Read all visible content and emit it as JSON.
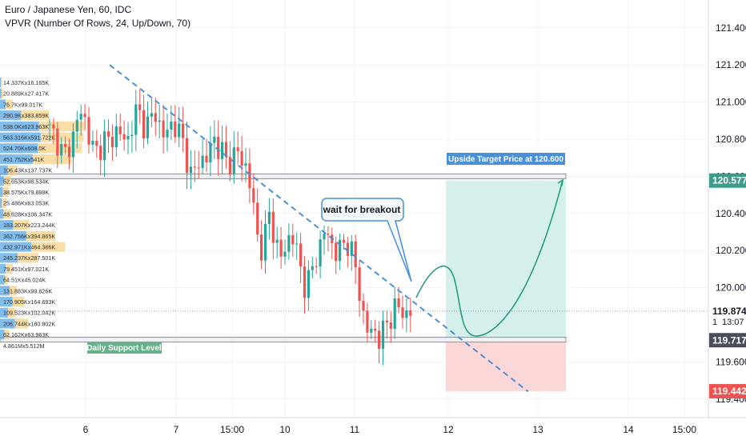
{
  "header": {
    "title": "Euro / Japanese Yen, 60, IDC",
    "indicator": "VPVR (Number Of Rows, 24, Up/Down, 70)"
  },
  "colors": {
    "up": "#26a69a",
    "down": "#ef5350",
    "trendline": "#4a90d9",
    "target_zone": "#d5efec",
    "stop_zone": "#fbd8d8",
    "vpvr_up": "#5aa7e6",
    "vpvr_down": "#f8c86a",
    "projection": "#1a9b77",
    "label_blue": "#4a90d9",
    "label_green": "#66b28a"
  },
  "annotations": {
    "target_label": "Upside Target Price at 120.600",
    "callout": "wait for breakout",
    "support_label": "Daily Support Level"
  },
  "price_axis": {
    "ticks": [
      "121.400",
      "121.200",
      "121.000",
      "120.800",
      "120.600",
      "120.400",
      "120.200",
      "120.000",
      "119.600",
      "119.400"
    ],
    "badges": {
      "target": "120.577",
      "current": "119.874",
      "countdown_label": "1",
      "countdown": "13:07",
      "entry": "119.717",
      "stop": "119.442"
    }
  },
  "time_axis": {
    "ticks": [
      "6",
      "7",
      "15:00",
      "10",
      "11",
      "12",
      "13",
      "14",
      "15:00"
    ]
  },
  "vpvr": {
    "rows": [
      {
        "label": "14.337Kx16.165K",
        "up": 14.337,
        "down": 16.165
      },
      {
        "label": "20.889Kx27.417K",
        "up": 20.889,
        "down": 27.417
      },
      {
        "label": "76.7Kx99.017K",
        "up": 76.7,
        "down": 99.017
      },
      {
        "label": "290.9Kx383.859K",
        "up": 290.9,
        "down": 383.859
      },
      {
        "label": "538.0Kx623.963K",
        "up": 538.0,
        "down": 623.963
      },
      {
        "label": "563.316Kx591.722K",
        "up": 563.316,
        "down": 591.722
      },
      {
        "label": "524.70Kx608.0K",
        "up": 524.7,
        "down": 608.0
      },
      {
        "label": "451.752Kx541K",
        "up": 451.752,
        "down": 541.0
      },
      {
        "label": "106.43Kx137.737K",
        "up": 106.43,
        "down": 137.737
      },
      {
        "label": "52.653Kx98.534K",
        "up": 52.653,
        "down": 98.534
      },
      {
        "label": "38.575Kx79.888K",
        "up": 38.575,
        "down": 79.888
      },
      {
        "label": "25.486Kx63.053K",
        "up": 25.486,
        "down": 63.053
      },
      {
        "label": "48.628Kx106.347K",
        "up": 48.628,
        "down": 106.347
      },
      {
        "label": "183.207Kx223.244K",
        "up": 183.207,
        "down": 223.244
      },
      {
        "label": "362.756Kx394.865K",
        "up": 362.756,
        "down": 394.865
      },
      {
        "label": "432.971Kx464.386K",
        "up": 432.971,
        "down": 464.386
      },
      {
        "label": "245.237Kx287.501K",
        "up": 245.237,
        "down": 287.501
      },
      {
        "label": "79.451Kx97.021K",
        "up": 79.451,
        "down": 97.021
      },
      {
        "label": "64.51Kx45.024K",
        "up": 64.51,
        "down": 45.024
      },
      {
        "label": "131.883Kx99.826K",
        "up": 131.883,
        "down": 99.826
      },
      {
        "label": "170.905Kx164.693K",
        "up": 170.905,
        "down": 164.693
      },
      {
        "label": "109.523Kx102.042K",
        "up": 109.523,
        "down": 102.042
      },
      {
        "label": "206.744Kx180.802K",
        "up": 206.744,
        "down": 180.802
      },
      {
        "label": "62.162Kx63.963K",
        "up": 62.162,
        "down": 63.963
      },
      {
        "label": "4.861Mx5.512M",
        "up": 0,
        "down": 0
      }
    ]
  },
  "chart_data": {
    "type": "candlestick",
    "title": "Euro / Japanese Yen, 60, IDC",
    "ylim": [
      119.3,
      121.55
    ],
    "x_ticks": [
      "6",
      "7",
      "15:00",
      "10",
      "11",
      "12",
      "13",
      "14",
      "15:00"
    ],
    "levels": {
      "resistance": 120.6,
      "support": 119.72,
      "target": 120.577,
      "current": 119.874,
      "entry": 119.717,
      "stop": 119.442
    },
    "trendline": [
      [
        121.2,
        0
      ],
      [
        119.44,
        1
      ]
    ],
    "close_path": [
      120.85,
      120.82,
      120.78,
      120.7,
      120.75,
      120.8,
      120.9,
      120.95,
      120.88,
      120.78,
      120.72,
      120.76,
      120.8,
      120.78,
      120.82,
      120.86,
      120.8,
      120.78,
      120.88,
      120.95,
      120.92,
      120.86,
      120.9,
      120.95,
      120.88,
      120.82,
      120.84,
      120.9,
      120.85,
      120.8,
      120.7,
      120.6,
      120.64,
      120.7,
      120.68,
      120.74,
      120.8,
      120.76,
      120.72,
      120.66,
      120.7,
      120.74,
      120.68,
      120.65,
      120.55,
      120.35,
      120.2,
      120.25,
      120.4,
      120.3,
      120.2,
      120.15,
      120.25,
      120.3,
      120.2,
      120.1,
      120.0,
      120.05,
      120.15,
      120.2,
      120.3,
      120.28,
      120.22,
      120.18,
      120.22,
      120.26,
      120.2,
      120.1,
      119.95,
      119.8,
      119.75,
      119.78,
      119.72,
      119.76,
      119.82,
      119.86,
      119.9,
      119.88,
      119.85,
      119.87
    ]
  }
}
